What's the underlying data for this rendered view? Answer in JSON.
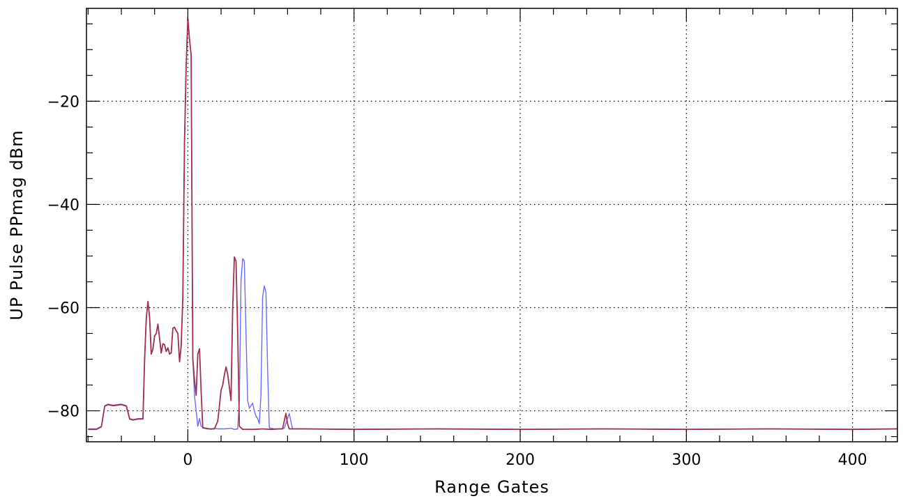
{
  "chart_data": {
    "type": "line",
    "title": "",
    "xlabel": "Range Gates",
    "ylabel": "UP Pulse PPmag dBm",
    "xlim": [
      -61,
      427
    ],
    "ylim": [
      -86.0,
      -2.0
    ],
    "x_ticks": [
      0,
      100,
      200,
      300,
      400
    ],
    "x_tick_labels": [
      "0",
      "100",
      "200",
      "300",
      "400"
    ],
    "y_ticks": [
      -80,
      -60,
      -40,
      -20
    ],
    "y_tick_labels": [
      "-80",
      "-60",
      "-40",
      "-20"
    ],
    "grid": true,
    "grid_style": "dotted",
    "legend": "none",
    "series": [
      {
        "color": "#6b6bf5",
        "points": [
          [
            -60,
            -83.5
          ],
          [
            -55,
            -83.5
          ],
          [
            -52,
            -83.0
          ],
          [
            -50,
            -79.0
          ],
          [
            -48,
            -78.7
          ],
          [
            -45,
            -78.9
          ],
          [
            -40,
            -78.7
          ],
          [
            -37,
            -79.0
          ],
          [
            -35,
            -81.5
          ],
          [
            -33,
            -81.7
          ],
          [
            -30,
            -81.5
          ],
          [
            -27,
            -81.5
          ],
          [
            -26,
            -70.0
          ],
          [
            -25,
            -62.0
          ],
          [
            -24,
            -58.8
          ],
          [
            -23,
            -62.0
          ],
          [
            -22,
            -69.0
          ],
          [
            -21,
            -68.0
          ],
          [
            -20,
            -65.5
          ],
          [
            -19,
            -65.0
          ],
          [
            -18,
            -63.2
          ],
          [
            -17,
            -66.0
          ],
          [
            -16,
            -68.8
          ],
          [
            -15,
            -67.0
          ],
          [
            -14,
            -67.2
          ],
          [
            -13,
            -68.5
          ],
          [
            -12,
            -67.8
          ],
          [
            -11,
            -69.0
          ],
          [
            -10,
            -68.8
          ],
          [
            -9,
            -64.0
          ],
          [
            -8,
            -63.8
          ],
          [
            -7,
            -64.5
          ],
          [
            -6,
            -65.0
          ],
          [
            -5,
            -70.5
          ],
          [
            -4,
            -67.5
          ],
          [
            -3,
            -58.0
          ],
          [
            -2,
            -28.0
          ],
          [
            -1,
            -13.0
          ],
          [
            0,
            -4.5
          ],
          [
            1,
            -8.0
          ],
          [
            2,
            -11.0
          ],
          [
            3,
            -70.0
          ],
          [
            4,
            -77.0
          ],
          [
            5,
            -80.0
          ],
          [
            6,
            -83.0
          ],
          [
            7,
            -81.5
          ],
          [
            8,
            -83.0
          ],
          [
            10,
            -83.3
          ],
          [
            12,
            -83.4
          ],
          [
            14,
            -83.6
          ],
          [
            16,
            -83.4
          ],
          [
            18,
            -83.5
          ],
          [
            22,
            -83.5
          ],
          [
            26,
            -83.4
          ],
          [
            28,
            -83.6
          ],
          [
            30,
            -83.5
          ],
          [
            31,
            -78.0
          ],
          [
            32,
            -55.0
          ],
          [
            33,
            -50.5
          ],
          [
            34,
            -51.0
          ],
          [
            35,
            -65.0
          ],
          [
            36,
            -78.0
          ],
          [
            37,
            -79.5
          ],
          [
            38,
            -79.0
          ],
          [
            39,
            -78.5
          ],
          [
            40,
            -80.0
          ],
          [
            41,
            -81.0
          ],
          [
            42,
            -81.5
          ],
          [
            43,
            -82.5
          ],
          [
            44,
            -77.0
          ],
          [
            45,
            -58.0
          ],
          [
            46,
            -55.8
          ],
          [
            47,
            -57.0
          ],
          [
            48,
            -72.0
          ],
          [
            49,
            -83.3
          ],
          [
            52,
            -83.5
          ],
          [
            56,
            -83.5
          ],
          [
            58,
            -83.4
          ],
          [
            60,
            -81.5
          ],
          [
            61,
            -80.5
          ],
          [
            62,
            -82.0
          ],
          [
            63,
            -83.5
          ],
          [
            70,
            -83.5
          ],
          [
            100,
            -83.6
          ],
          [
            150,
            -83.5
          ],
          [
            200,
            -83.6
          ],
          [
            250,
            -83.5
          ],
          [
            300,
            -83.6
          ],
          [
            350,
            -83.5
          ],
          [
            400,
            -83.6
          ],
          [
            427,
            -83.5
          ]
        ]
      },
      {
        "color": "#a03050",
        "points": [
          [
            -60,
            -83.6
          ],
          [
            -55,
            -83.6
          ],
          [
            -52,
            -83.1
          ],
          [
            -50,
            -79.1
          ],
          [
            -48,
            -78.8
          ],
          [
            -45,
            -79.0
          ],
          [
            -40,
            -78.8
          ],
          [
            -37,
            -79.1
          ],
          [
            -35,
            -81.6
          ],
          [
            -33,
            -81.8
          ],
          [
            -30,
            -81.6
          ],
          [
            -27,
            -81.6
          ],
          [
            -26,
            -70.0
          ],
          [
            -25,
            -62.0
          ],
          [
            -24,
            -58.8
          ],
          [
            -23,
            -62.0
          ],
          [
            -22,
            -69.0
          ],
          [
            -21,
            -68.0
          ],
          [
            -20,
            -65.5
          ],
          [
            -19,
            -65.0
          ],
          [
            -18,
            -63.2
          ],
          [
            -17,
            -66.0
          ],
          [
            -16,
            -68.8
          ],
          [
            -15,
            -67.0
          ],
          [
            -14,
            -67.2
          ],
          [
            -13,
            -68.5
          ],
          [
            -12,
            -67.8
          ],
          [
            -11,
            -69.0
          ],
          [
            -10,
            -68.8
          ],
          [
            -9,
            -64.0
          ],
          [
            -8,
            -63.8
          ],
          [
            -7,
            -64.5
          ],
          [
            -6,
            -65.0
          ],
          [
            -5,
            -70.5
          ],
          [
            -4,
            -67.5
          ],
          [
            -3,
            -58.0
          ],
          [
            -2,
            -28.0
          ],
          [
            -1,
            -13.0
          ],
          [
            0,
            -4.0
          ],
          [
            1,
            -8.0
          ],
          [
            2,
            -11.0
          ],
          [
            3,
            -70.0
          ],
          [
            4,
            -74.0
          ],
          [
            5,
            -77.0
          ],
          [
            6,
            -69.0
          ],
          [
            7,
            -68.0
          ],
          [
            8,
            -76.0
          ],
          [
            9,
            -83.3
          ],
          [
            12,
            -83.5
          ],
          [
            16,
            -83.5
          ],
          [
            18,
            -82.0
          ],
          [
            19,
            -79.0
          ],
          [
            20,
            -76.0
          ],
          [
            21,
            -75.0
          ],
          [
            22,
            -73.0
          ],
          [
            23,
            -71.5
          ],
          [
            24,
            -73.0
          ],
          [
            25,
            -75.5
          ],
          [
            26,
            -78.0
          ],
          [
            27,
            -60.0
          ],
          [
            28,
            -50.2
          ],
          [
            29,
            -51.0
          ],
          [
            30,
            -65.0
          ],
          [
            31,
            -83.0
          ],
          [
            33,
            -83.6
          ],
          [
            40,
            -83.6
          ],
          [
            45,
            -83.5
          ],
          [
            50,
            -83.6
          ],
          [
            55,
            -83.5
          ],
          [
            57,
            -83.5
          ],
          [
            58,
            -82.0
          ],
          [
            59,
            -80.5
          ],
          [
            60,
            -82.5
          ],
          [
            61,
            -83.5
          ],
          [
            70,
            -83.5
          ],
          [
            100,
            -83.6
          ],
          [
            150,
            -83.5
          ],
          [
            200,
            -83.6
          ],
          [
            250,
            -83.5
          ],
          [
            300,
            -83.6
          ],
          [
            350,
            -83.5
          ],
          [
            400,
            -83.6
          ],
          [
            427,
            -83.5
          ]
        ]
      }
    ]
  }
}
